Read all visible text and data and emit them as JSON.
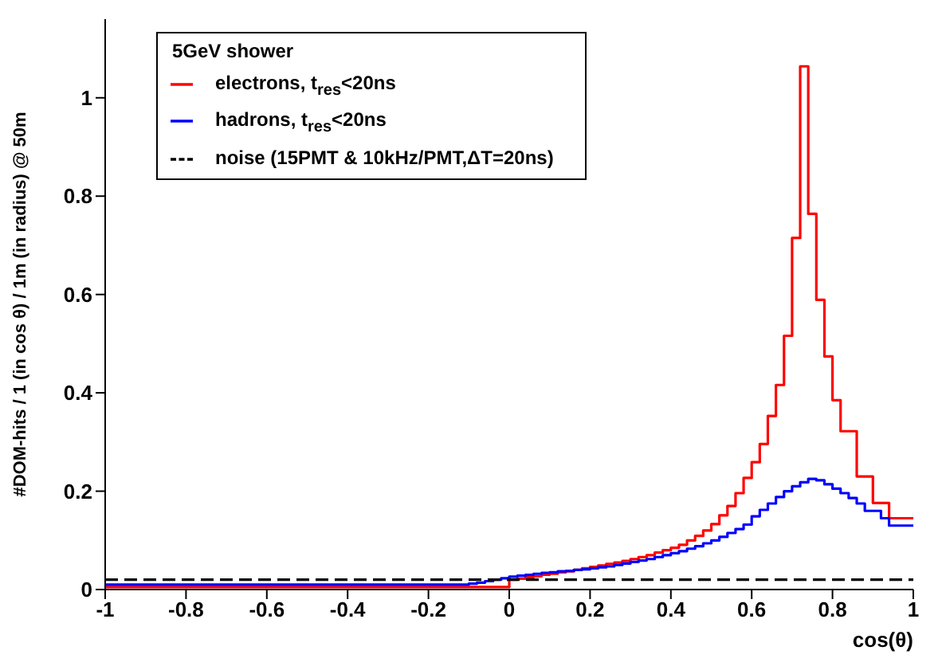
{
  "chart_data": {
    "type": "histogram",
    "xlabel": "cos(θ)",
    "ylabel": "#DOM-hits / 1 (in cos θ) / 1m (in radius) @ 50m",
    "legend_title": "5GeV shower",
    "legend": "top",
    "grid": false,
    "bins": [
      -1,
      -0.98,
      -0.96,
      -0.94,
      -0.92,
      -0.9,
      -0.88,
      -0.86,
      -0.84,
      -0.82,
      -0.8,
      -0.78,
      -0.76,
      -0.74,
      -0.72,
      -0.7,
      -0.68,
      -0.66,
      -0.64,
      -0.62,
      -0.6,
      -0.58,
      -0.56,
      -0.54,
      -0.52,
      -0.5,
      -0.48,
      -0.46,
      -0.44,
      -0.42,
      -0.4,
      -0.38,
      -0.36,
      -0.34,
      -0.32,
      -0.3,
      -0.28,
      -0.26,
      -0.24,
      -0.22,
      -0.2,
      -0.18,
      -0.16,
      -0.14,
      -0.12,
      -0.1,
      -0.08,
      -0.06,
      -0.04,
      -0.02,
      0,
      0.02,
      0.04,
      0.06,
      0.08,
      0.1,
      0.12,
      0.14,
      0.16,
      0.18,
      0.2,
      0.22,
      0.24,
      0.26,
      0.28,
      0.3,
      0.32,
      0.34,
      0.36,
      0.38,
      0.4,
      0.42,
      0.44,
      0.46,
      0.48,
      0.5,
      0.52,
      0.54,
      0.56,
      0.58,
      0.6,
      0.62,
      0.64,
      0.66,
      0.68,
      0.7,
      0.72,
      0.74,
      0.76,
      0.78,
      0.8,
      0.82,
      0.84,
      0.86,
      0.88,
      0.9,
      0.92,
      0.94,
      0.96,
      0.98,
      1
    ],
    "series": [
      {
        "name": "electrons, t$_{res}$<20ns",
        "color": "#ff0000",
        "values": [
          0.005,
          0.005,
          0.005,
          0.005,
          0.005,
          0.005,
          0.005,
          0.005,
          0.005,
          0.005,
          0.005,
          0.005,
          0.005,
          0.005,
          0.005,
          0.005,
          0.005,
          0.005,
          0.005,
          0.005,
          0.005,
          0.005,
          0.005,
          0.005,
          0.005,
          0.005,
          0.005,
          0.005,
          0.005,
          0.005,
          0.005,
          0.005,
          0.005,
          0.005,
          0.005,
          0.005,
          0.005,
          0.005,
          0.005,
          0.005,
          0.005,
          0.005,
          0.005,
          0.005,
          0.005,
          0.005,
          0.005,
          0.005,
          0.005,
          0.005,
          0.02,
          0.022,
          0.025,
          0.027,
          0.03,
          0.032,
          0.035,
          0.037,
          0.04,
          0.043,
          0.046,
          0.049,
          0.052,
          0.055,
          0.058,
          0.062,
          0.066,
          0.07,
          0.075,
          0.08,
          0.085,
          0.091,
          0.1,
          0.109,
          0.12,
          0.133,
          0.151,
          0.17,
          0.196,
          0.227,
          0.259,
          0.296,
          0.353,
          0.416,
          0.516,
          0.715,
          1.064,
          0.764,
          0.589,
          0.474,
          0.385,
          0.322,
          0.322,
          0.23,
          0.23,
          0.176,
          0.176,
          0.145,
          0.145,
          0.145
        ]
      },
      {
        "name": "hadrons, t$_{res}$<20ns",
        "color": "#0000ff",
        "values": [
          0.01,
          0.01,
          0.01,
          0.01,
          0.01,
          0.01,
          0.01,
          0.01,
          0.01,
          0.01,
          0.01,
          0.01,
          0.01,
          0.01,
          0.01,
          0.01,
          0.01,
          0.01,
          0.01,
          0.01,
          0.01,
          0.01,
          0.01,
          0.01,
          0.01,
          0.01,
          0.01,
          0.01,
          0.01,
          0.01,
          0.01,
          0.01,
          0.01,
          0.01,
          0.01,
          0.01,
          0.01,
          0.01,
          0.01,
          0.01,
          0.01,
          0.01,
          0.01,
          0.01,
          0.01,
          0.012,
          0.014,
          0.017,
          0.02,
          0.023,
          0.026,
          0.028,
          0.03,
          0.032,
          0.034,
          0.035,
          0.037,
          0.038,
          0.04,
          0.041,
          0.043,
          0.045,
          0.047,
          0.05,
          0.053,
          0.056,
          0.059,
          0.062,
          0.066,
          0.07,
          0.074,
          0.078,
          0.083,
          0.088,
          0.094,
          0.1,
          0.107,
          0.115,
          0.123,
          0.132,
          0.149,
          0.162,
          0.175,
          0.188,
          0.2,
          0.21,
          0.218,
          0.225,
          0.222,
          0.214,
          0.205,
          0.196,
          0.186,
          0.175,
          0.16,
          0.16,
          0.145,
          0.13,
          0.13,
          0.13
        ]
      },
      {
        "name": "noise (15PMT & 10kHz/PMT,ΔT=20ns)",
        "color": "#000000",
        "line_style": "dashed",
        "values": [
          0.02,
          0.02,
          0.02,
          0.02,
          0.02,
          0.02,
          0.02,
          0.02,
          0.02,
          0.02,
          0.02,
          0.02,
          0.02,
          0.02,
          0.02,
          0.02,
          0.02,
          0.02,
          0.02,
          0.02,
          0.02,
          0.02,
          0.02,
          0.02,
          0.02,
          0.02,
          0.02,
          0.02,
          0.02,
          0.02,
          0.02,
          0.02,
          0.02,
          0.02,
          0.02,
          0.02,
          0.02,
          0.02,
          0.02,
          0.02,
          0.02,
          0.02,
          0.02,
          0.02,
          0.02,
          0.02,
          0.02,
          0.02,
          0.02,
          0.02,
          0.02,
          0.02,
          0.02,
          0.02,
          0.02,
          0.02,
          0.02,
          0.02,
          0.02,
          0.02,
          0.02,
          0.02,
          0.02,
          0.02,
          0.02,
          0.02,
          0.02,
          0.02,
          0.02,
          0.02,
          0.02,
          0.02,
          0.02,
          0.02,
          0.02,
          0.02,
          0.02,
          0.02,
          0.02,
          0.02,
          0.02,
          0.02,
          0.02,
          0.02,
          0.02,
          0.02,
          0.02,
          0.02,
          0.02,
          0.02,
          0.02,
          0.02,
          0.02,
          0.02,
          0.02,
          0.02,
          0.02,
          0.02,
          0.02,
          0.02
        ]
      }
    ],
    "xlim": [
      -1,
      1
    ],
    "xticks": [
      -1,
      -0.8,
      -0.6,
      -0.4,
      -0.2,
      0,
      0.2,
      0.4,
      0.6,
      0.8,
      1
    ],
    "ylim": [
      0,
      1.16
    ],
    "yticks": [
      0,
      0.2,
      0.4,
      0.6,
      0.8,
      1
    ]
  }
}
